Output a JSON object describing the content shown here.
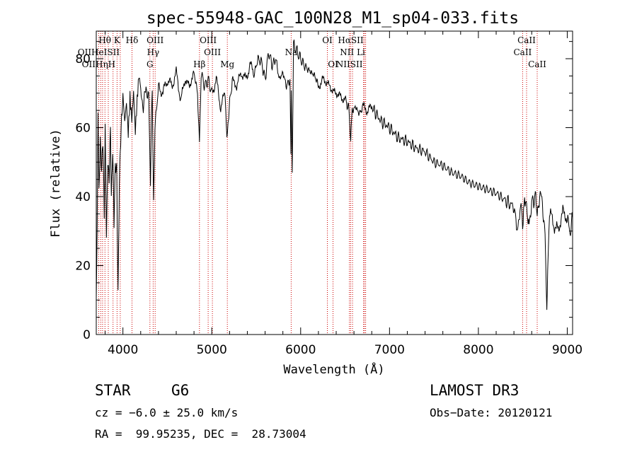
{
  "chart_data": {
    "type": "line",
    "title": "spec-55948-GAC_100N28_M1_sp04-033.fits",
    "xlabel": "Wavelength (Å)",
    "ylabel": "Flux (relative)",
    "xlim": [
      3700,
      9060
    ],
    "ylim": [
      0,
      88
    ],
    "xticks": [
      4000,
      5000,
      6000,
      7000,
      8000,
      9000
    ],
    "yticks": [
      0,
      20,
      40,
      60,
      80
    ],
    "grid": false,
    "series": [
      {
        "name": "spectrum",
        "x": [
          3700,
          3710,
          3720,
          3730,
          3745,
          3760,
          3775,
          3790,
          3800,
          3815,
          3830,
          3845,
          3860,
          3870,
          3885,
          3900,
          3915,
          3930,
          3945,
          3960,
          3970,
          3985,
          4000,
          4020,
          4040,
          4060,
          4080,
          4100,
          4120,
          4140,
          4160,
          4180,
          4200,
          4230,
          4260,
          4290,
          4310,
          4320,
          4330,
          4345,
          4360,
          4400,
          4450,
          4500,
          4550,
          4600,
          4650,
          4700,
          4750,
          4800,
          4840,
          4861,
          4880,
          4920,
          4960,
          5000,
          5050,
          5100,
          5150,
          5170,
          5190,
          5230,
          5280,
          5330,
          5380,
          5430,
          5480,
          5520,
          5560,
          5600,
          5640,
          5680,
          5720,
          5760,
          5800,
          5840,
          5880,
          5890,
          5895,
          5905,
          5920,
          5960,
          6000,
          6040,
          6080,
          6120,
          6160,
          6200,
          6250,
          6300,
          6350,
          6400,
          6450,
          6500,
          6540,
          6563,
          6580,
          6620,
          6660,
          6700,
          6750,
          6800,
          6900,
          7000,
          7100,
          7200,
          7300,
          7400,
          7500,
          7600,
          7700,
          7800,
          7900,
          8000,
          8100,
          8200,
          8300,
          8400,
          8440,
          8480,
          8498,
          8520,
          8542,
          8570,
          8600,
          8640,
          8662,
          8690,
          8720,
          8750,
          8770,
          8780,
          8800,
          8850,
          8900,
          8950,
          9000,
          9030,
          9060
        ],
        "values": [
          12,
          30,
          65,
          40,
          58,
          48,
          55,
          35,
          60,
          28,
          52,
          45,
          58,
          40,
          55,
          32,
          50,
          48,
          10,
          45,
          55,
          62,
          68,
          60,
          66,
          58,
          70,
          64,
          72,
          60,
          68,
          74,
          70,
          66,
          72,
          68,
          42,
          64,
          70,
          38,
          60,
          72,
          70,
          74,
          72,
          76,
          68,
          74,
          72,
          76,
          70,
          56,
          76,
          72,
          74,
          70,
          74,
          66,
          70,
          58,
          64,
          74,
          72,
          76,
          74,
          78,
          76,
          80,
          79,
          74,
          82,
          78,
          80,
          74,
          76,
          72,
          74,
          52,
          72,
          46,
          84,
          82,
          80,
          78,
          77,
          76,
          75,
          72,
          74,
          73,
          71,
          70,
          69,
          68,
          66,
          57,
          65,
          66,
          64,
          66,
          65,
          66,
          62,
          60,
          57,
          56,
          54,
          53,
          50,
          49,
          47,
          46,
          44,
          43,
          42,
          41,
          39,
          37,
          30,
          38,
          32,
          40,
          36,
          32,
          38,
          40,
          35,
          40,
          39,
          28,
          5,
          20,
          35,
          32,
          30,
          36,
          33,
          30,
          34
        ]
      }
    ],
    "lines_row1": [
      {
        "label": "Hθ",
        "x": 3797
      },
      {
        "label": "K",
        "x": 3934
      },
      {
        "label": "Hδ",
        "x": 4102
      },
      {
        "label": "OIII",
        "x": 4363
      },
      {
        "label": "OIII",
        "x": 4959
      },
      {
        "label": "OI",
        "x": 6300
      },
      {
        "label": "HαSII",
        "x": 6563
      },
      {
        "label": "CaII",
        "x": 8542
      }
    ],
    "lines_row2": [
      {
        "label": "OIIHeISII",
        "x": 3727
      },
      {
        "label": "Hγ",
        "x": 4340
      },
      {
        "label": "OIII",
        "x": 5007
      },
      {
        "label": "Na",
        "x": 5893
      },
      {
        "label": "NII Li",
        "x": 6584
      },
      {
        "label": "CaII",
        "x": 8498
      }
    ],
    "lines_row3": [
      {
        "label": "OIIHηH",
        "x": 3727
      },
      {
        "label": "G",
        "x": 4304
      },
      {
        "label": "Hβ",
        "x": 4861
      },
      {
        "label": "Mg",
        "x": 5175
      },
      {
        "label": "OI",
        "x": 6364
      },
      {
        "label": "NIISII",
        "x": 6548
      },
      {
        "label": "CaII",
        "x": 8662
      }
    ],
    "line_positions": [
      3727,
      3750,
      3771,
      3798,
      3835,
      3889,
      3934,
      3970,
      4102,
      4304,
      4340,
      4363,
      4861,
      4959,
      5007,
      5175,
      5893,
      6300,
      6364,
      6548,
      6563,
      6584,
      6708,
      6717,
      6731,
      8498,
      8542,
      8662
    ]
  },
  "info": {
    "class": "STAR",
    "subclass": "G6",
    "survey": "LAMOST DR3",
    "cz": "cz = −6.0 ± 25.0 km/s",
    "obs_date": "Obs−Date: 20120121",
    "radec": "RA =  99.95235, DEC =  28.73004"
  }
}
